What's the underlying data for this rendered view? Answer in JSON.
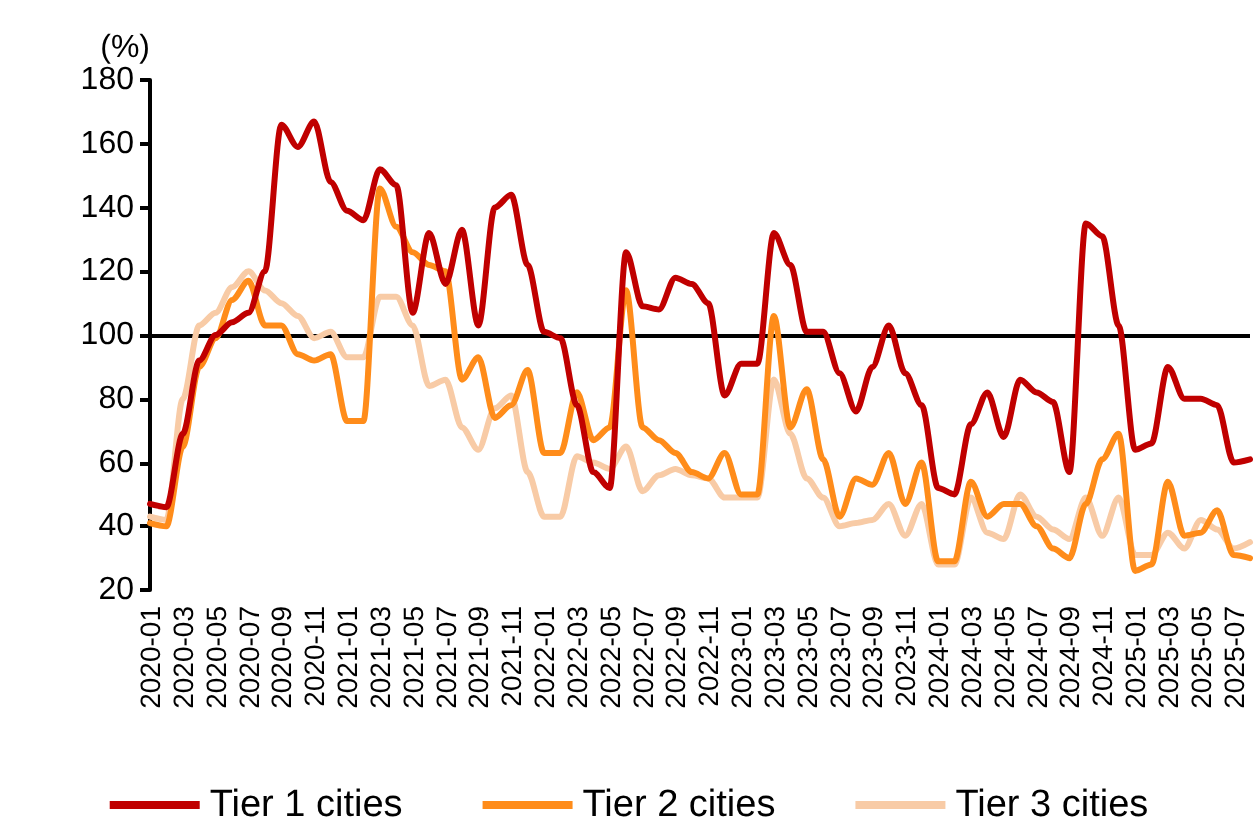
{
  "chart_data": {
    "type": "line",
    "ylabel": "(%)",
    "categories": [
      "2020-01",
      null,
      "2020-03",
      null,
      "2020-05",
      null,
      "2020-07",
      null,
      "2020-09",
      null,
      "2020-11",
      null,
      "2021-01",
      null,
      "2021-03",
      null,
      "2021-05",
      null,
      "2021-07",
      null,
      "2021-09",
      null,
      "2021-11",
      null,
      "2022-01",
      null,
      "2022-03",
      null,
      "2022-05",
      null,
      "2022-07",
      null,
      "2022-09",
      null,
      "2022-11",
      null,
      "2023-01",
      null,
      "2023-03",
      null,
      "2023-05",
      null,
      "2023-07",
      null,
      "2023-09",
      null,
      "2023-11",
      null,
      "2024-01",
      null,
      "2024-03",
      null,
      "2024-05",
      null,
      "2024-07",
      null,
      "2024-09",
      null,
      "2024-11",
      null,
      "2025-01",
      null,
      "2025-03",
      null,
      "2025-05",
      null,
      "2025-07",
      null
    ],
    "series": [
      {
        "name": "Tier 1 cities",
        "color": "#c00000",
        "values": [
          47,
          46,
          69,
          92,
          100,
          104,
          107,
          120,
          166,
          159,
          167,
          148,
          139,
          136,
          152,
          147,
          107,
          132,
          116,
          133,
          103,
          140,
          144,
          122,
          101,
          99,
          78,
          57,
          52,
          126,
          109,
          108,
          118,
          116,
          110,
          81,
          91,
          91,
          132,
          122,
          101,
          101,
          88,
          76,
          90,
          103,
          88,
          78,
          52,
          50,
          72,
          82,
          68,
          86,
          82,
          79,
          57,
          135,
          131,
          103,
          64,
          66,
          90,
          80,
          80,
          78,
          60,
          61
        ]
      },
      {
        "name": "Tier 2 cities",
        "color": "#ff8c1a",
        "values": [
          41,
          40,
          65,
          90,
          99,
          111,
          117,
          103,
          103,
          94,
          92,
          94,
          73,
          73,
          146,
          134,
          126,
          122,
          120,
          86,
          93,
          74,
          78,
          89,
          63,
          63,
          82,
          67,
          71,
          114,
          71,
          67,
          63,
          57,
          55,
          63,
          50,
          50,
          106,
          71,
          83,
          61,
          43,
          55,
          53,
          63,
          47,
          60,
          29,
          29,
          54,
          43,
          47,
          47,
          40,
          33,
          30,
          47,
          61,
          69,
          26,
          28,
          54,
          37,
          38,
          45,
          31,
          30
        ]
      },
      {
        "name": "Tier 3 cities",
        "color": "#f8cba6",
        "values": [
          43,
          42,
          80,
          103,
          107,
          115,
          120,
          114,
          110,
          106,
          99,
          101,
          93,
          93,
          112,
          112,
          103,
          84,
          86,
          71,
          64,
          77,
          81,
          57,
          43,
          43,
          62,
          60,
          58,
          65,
          51,
          56,
          58,
          56,
          55,
          49,
          49,
          49,
          86,
          69,
          55,
          49,
          40,
          41,
          42,
          47,
          37,
          47,
          28,
          28,
          49,
          38,
          36,
          50,
          43,
          39,
          36,
          49,
          37,
          49,
          31,
          31,
          38,
          33,
          42,
          39,
          33,
          35
        ]
      }
    ],
    "ylim": [
      20,
      180
    ],
    "yticks": [
      20,
      40,
      60,
      80,
      100,
      120,
      140,
      160,
      180
    ],
    "ref_lines": [
      {
        "axis": "y",
        "value": 100,
        "color": "#000000",
        "line_style": "solid"
      }
    ],
    "grid": false,
    "legend": "bottom",
    "marker": "none",
    "line_style": "solid"
  }
}
